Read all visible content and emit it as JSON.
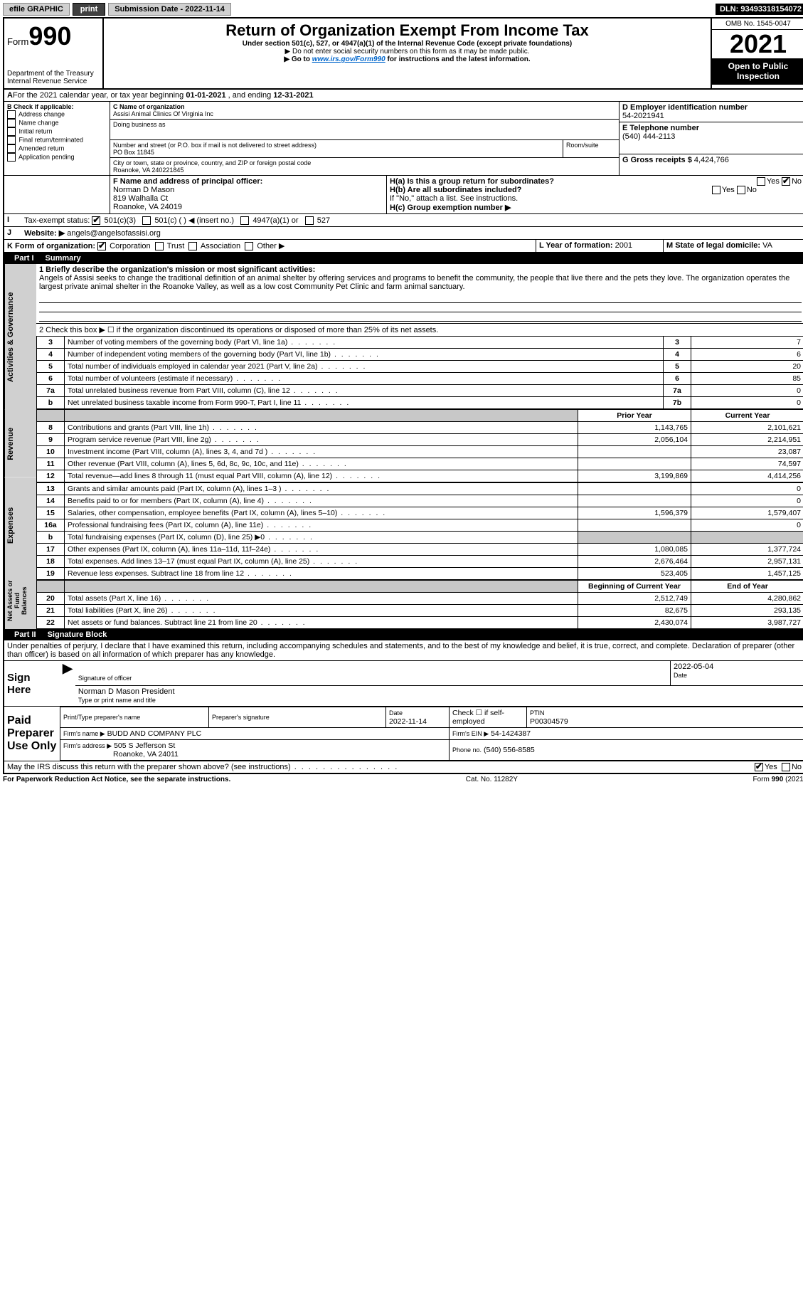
{
  "topbar": {
    "efile": "efile GRAPHIC",
    "print": "print",
    "sub_label": "Submission Date - 2022-11-14",
    "dln": "DLN: 93493318154072"
  },
  "header": {
    "form_word": "Form",
    "form_no": "990",
    "dept": "Department of the Treasury",
    "irs": "Internal Revenue Service",
    "title": "Return of Organization Exempt From Income Tax",
    "sub1": "Under section 501(c), 527, or 4947(a)(1) of the Internal Revenue Code (except private foundations)",
    "sub2": "▶ Do not enter social security numbers on this form as it may be made public.",
    "sub3a": "▶ Go to ",
    "sub3_link": "www.irs.gov/Form990",
    "sub3b": " for instructions and the latest information.",
    "omb": "OMB No. 1545-0047",
    "year": "2021",
    "open": "Open to Public Inspection"
  },
  "period": {
    "label_a": "For the 2021 calendar year, or tax year beginning ",
    "begin": "01-01-2021",
    "label_b": " , and ending ",
    "end": "12-31-2021"
  },
  "boxB": {
    "label": "B Check if applicable:",
    "items": [
      "Address change",
      "Name change",
      "Initial return",
      "Final return/terminated",
      "Amended return",
      "Application pending"
    ]
  },
  "boxC": {
    "label": "C Name of organization",
    "name": "Assisi Animal Clinics Of Virginia Inc",
    "dba_label": "Doing business as",
    "street_label": "Number and street (or P.O. box if mail is not delivered to street address)",
    "room_label": "Room/suite",
    "street": "PO Box 11845",
    "city_label": "City or town, state or province, country, and ZIP or foreign postal code",
    "city": "Roanoke, VA  240221845"
  },
  "boxD": {
    "label": "D Employer identification number",
    "value": "54-2021941"
  },
  "boxE": {
    "label": "E Telephone number",
    "value": "(540) 444-2113"
  },
  "boxG": {
    "label": "G Gross receipts $",
    "value": "4,424,766"
  },
  "boxF": {
    "label": "F  Name and address of principal officer:",
    "name": "Norman D Mason",
    "addr1": "819 Walhalla Ct",
    "addr2": "Roanoke, VA  24019"
  },
  "boxH": {
    "a": "H(a)  Is this a group return for subordinates?",
    "b": "H(b)  Are all subordinates included?",
    "b_note": "If \"No,\" attach a list. See instructions.",
    "c": "H(c)  Group exemption number ▶",
    "yes": "Yes",
    "no": "No"
  },
  "boxI": {
    "label": "Tax-exempt status:",
    "opts": [
      "501(c)(3)",
      "501(c) (   ) ◀ (insert no.)",
      "4947(a)(1) or",
      "527"
    ]
  },
  "boxJ": {
    "label": "Website: ▶",
    "value": "angels@angelsofassisi.org"
  },
  "boxK": {
    "label": "K Form of organization:",
    "opts": [
      "Corporation",
      "Trust",
      "Association",
      "Other ▶"
    ]
  },
  "boxL": {
    "label": "L Year of formation:",
    "value": "2001"
  },
  "boxM": {
    "label": "M State of legal domicile:",
    "value": "VA"
  },
  "partI": {
    "hdr": "Part I",
    "title": "Summary",
    "l1_label": "1  Briefly describe the organization's mission or most significant activities:",
    "l1_text": "Angels of Assisi seeks to change the traditional definition of an animal shelter by offering services and programs to benefit the community, the people that live there and the pets they love. The organization operates the largest private animal shelter in the Roanoke Valley, as well as a low cost Community Pet Clinic and farm animal sanctuary.",
    "l2": "2   Check this box ▶ ☐  if the organization discontinued its operations or disposed of more than 25% of its net assets.",
    "rows_top": [
      {
        "n": "3",
        "t": "Number of voting members of the governing body (Part VI, line 1a)",
        "b": "3",
        "v": "7"
      },
      {
        "n": "4",
        "t": "Number of independent voting members of the governing body (Part VI, line 1b)",
        "b": "4",
        "v": "6"
      },
      {
        "n": "5",
        "t": "Total number of individuals employed in calendar year 2021 (Part V, line 2a)",
        "b": "5",
        "v": "20"
      },
      {
        "n": "6",
        "t": "Total number of volunteers (estimate if necessary)",
        "b": "6",
        "v": "85"
      },
      {
        "n": "7a",
        "t": "Total unrelated business revenue from Part VIII, column (C), line 12",
        "b": "7a",
        "v": "0"
      },
      {
        "n": "b",
        "t": "Net unrelated business taxable income from Form 990-T, Part I, line 11",
        "b": "7b",
        "v": "0"
      }
    ],
    "col_prior": "Prior Year",
    "col_curr": "Current Year",
    "rev": [
      {
        "n": "8",
        "t": "Contributions and grants (Part VIII, line 1h)",
        "p": "1,143,765",
        "c": "2,101,621"
      },
      {
        "n": "9",
        "t": "Program service revenue (Part VIII, line 2g)",
        "p": "2,056,104",
        "c": "2,214,951"
      },
      {
        "n": "10",
        "t": "Investment income (Part VIII, column (A), lines 3, 4, and 7d )",
        "p": "",
        "c": "23,087"
      },
      {
        "n": "11",
        "t": "Other revenue (Part VIII, column (A), lines 5, 6d, 8c, 9c, 10c, and 11e)",
        "p": "",
        "c": "74,597"
      },
      {
        "n": "12",
        "t": "Total revenue—add lines 8 through 11 (must equal Part VIII, column (A), line 12)",
        "p": "3,199,869",
        "c": "4,414,256"
      }
    ],
    "exp": [
      {
        "n": "13",
        "t": "Grants and similar amounts paid (Part IX, column (A), lines 1–3 )",
        "p": "",
        "c": "0"
      },
      {
        "n": "14",
        "t": "Benefits paid to or for members (Part IX, column (A), line 4)",
        "p": "",
        "c": "0"
      },
      {
        "n": "15",
        "t": "Salaries, other compensation, employee benefits (Part IX, column (A), lines 5–10)",
        "p": "1,596,379",
        "c": "1,579,407"
      },
      {
        "n": "16a",
        "t": "Professional fundraising fees (Part IX, column (A), line 11e)",
        "p": "",
        "c": "0"
      },
      {
        "n": "b",
        "t": "Total fundraising expenses (Part IX, column (D), line 25) ▶0",
        "p": "SHADE",
        "c": "SHADE"
      },
      {
        "n": "17",
        "t": "Other expenses (Part IX, column (A), lines 11a–11d, 11f–24e)",
        "p": "1,080,085",
        "c": "1,377,724"
      },
      {
        "n": "18",
        "t": "Total expenses. Add lines 13–17 (must equal Part IX, column (A), line 25)",
        "p": "2,676,464",
        "c": "2,957,131"
      },
      {
        "n": "19",
        "t": "Revenue less expenses. Subtract line 18 from line 12",
        "p": "523,405",
        "c": "1,457,125"
      }
    ],
    "col_begin": "Beginning of Current Year",
    "col_end": "End of Year",
    "net": [
      {
        "n": "20",
        "t": "Total assets (Part X, line 16)",
        "p": "2,512,749",
        "c": "4,280,862"
      },
      {
        "n": "21",
        "t": "Total liabilities (Part X, line 26)",
        "p": "82,675",
        "c": "293,135"
      },
      {
        "n": "22",
        "t": "Net assets or fund balances. Subtract line 21 from line 20",
        "p": "2,430,074",
        "c": "3,987,727"
      }
    ],
    "tabs": [
      "Activities & Governance",
      "Revenue",
      "Expenses",
      "Net Assets or Fund Balances"
    ]
  },
  "partII": {
    "hdr": "Part II",
    "title": "Signature Block",
    "perjury": "Under penalties of perjury, I declare that I have examined this return, including accompanying schedules and statements, and to the best of my knowledge and belief, it is true, correct, and complete. Declaration of preparer (other than officer) is based on all information of which preparer has any knowledge.",
    "sign_here": "Sign Here",
    "sig_officer": "Signature of officer",
    "sig_date": "2022-05-04",
    "date_label": "Date",
    "officer_name": "Norman D Mason  President",
    "type_name": "Type or print name and title",
    "paid": "Paid Preparer Use Only",
    "prep_name_label": "Print/Type preparer's name",
    "prep_sig_label": "Preparer's signature",
    "prep_date": "2022-11-14",
    "check_self": "Check ☐ if self-employed",
    "ptin_label": "PTIN",
    "ptin": "P00304579",
    "firm_name_label": "Firm's name    ▶",
    "firm_name": "BUDD AND COMPANY PLC",
    "firm_ein_label": "Firm's EIN ▶",
    "firm_ein": "54-1424387",
    "firm_addr_label": "Firm's address ▶",
    "firm_addr1": "505 S Jefferson St",
    "firm_addr2": "Roanoke, VA  24011",
    "firm_phone_label": "Phone no.",
    "firm_phone": "(540) 556-8585",
    "discuss": "May the IRS discuss this return with the preparer shown above? (see instructions)"
  },
  "footer": {
    "pra": "For Paperwork Reduction Act Notice, see the separate instructions.",
    "cat": "Cat. No. 11282Y",
    "form": "Form 990 (2021)"
  }
}
